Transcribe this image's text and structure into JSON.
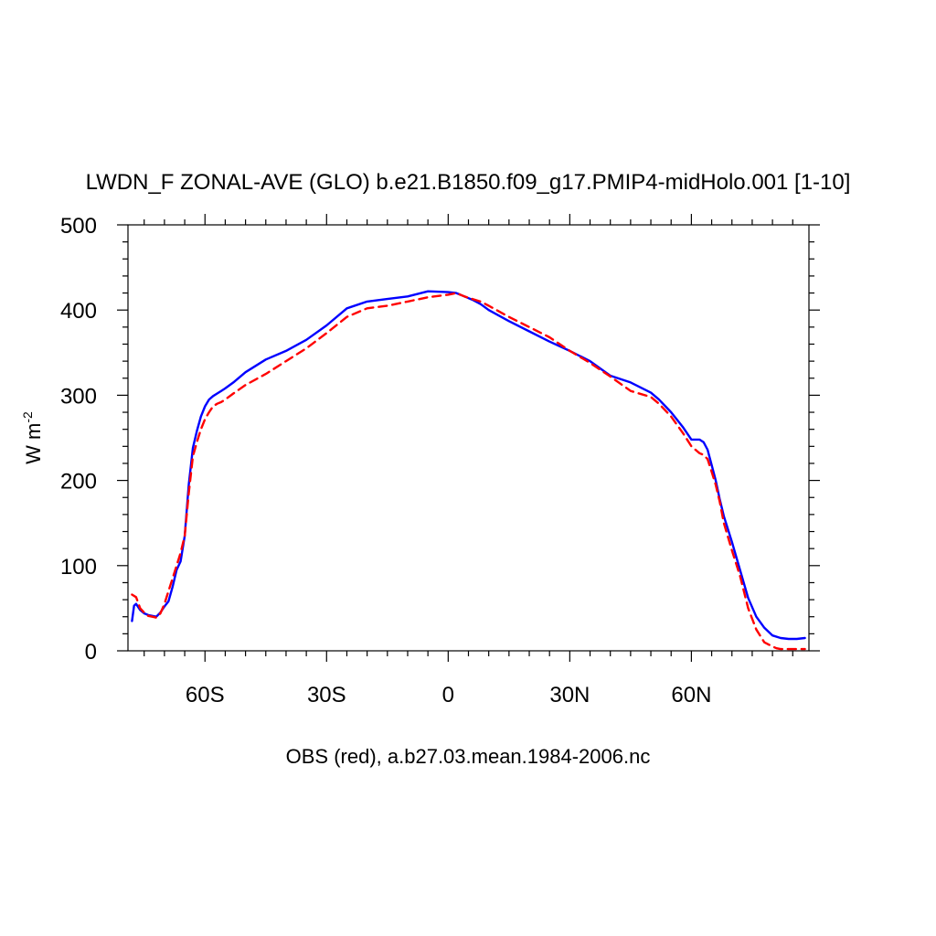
{
  "chart_data": {
    "type": "line",
    "title": "LWDN_F ZONAL-AVE (GLO) b.e21.B1850.f09_g17.PMIP4-midHolo.001 [1-10]",
    "xlabel": "OBS (red), a.b27.03.mean.1984-2006.nc",
    "ylabel": "W m",
    "ylabel_exponent": "-2",
    "xlim": [
      -79,
      89
    ],
    "ylim": [
      0,
      500
    ],
    "grid": false,
    "x_ticks": [
      {
        "value": -60,
        "label": "60S"
      },
      {
        "value": -30,
        "label": "30S"
      },
      {
        "value": 0,
        "label": "0"
      },
      {
        "value": 30,
        "label": "30N"
      },
      {
        "value": 60,
        "label": "60N"
      }
    ],
    "y_ticks": [
      {
        "value": 0,
        "label": "0"
      },
      {
        "value": 100,
        "label": "100"
      },
      {
        "value": 200,
        "label": "200"
      },
      {
        "value": 300,
        "label": "300"
      },
      {
        "value": 400,
        "label": "400"
      },
      {
        "value": 500,
        "label": "500"
      }
    ],
    "series": [
      {
        "color": "#0000ff",
        "dash": "solid",
        "x": [
          -78,
          -77.5,
          -77,
          -76,
          -75,
          -74,
          -73,
          -72,
          -71,
          -70,
          -69,
          -68,
          -67,
          -66,
          -65,
          -64,
          -63,
          -62,
          -61,
          -60,
          -59,
          -58,
          -57,
          -56,
          -55,
          -53,
          -50,
          -45,
          -40,
          -35,
          -30,
          -25,
          -20,
          -15,
          -10,
          -5,
          0,
          2,
          4,
          6,
          8,
          10,
          15,
          20,
          25,
          30,
          35,
          40,
          45,
          50,
          52,
          55,
          58,
          60,
          62,
          63,
          64,
          65,
          66,
          67,
          68,
          70,
          72,
          74,
          76,
          78,
          80,
          82,
          84,
          86,
          88
        ],
        "y": [
          35,
          53,
          55,
          48,
          44,
          42,
          41,
          40,
          45,
          52,
          58,
          75,
          95,
          105,
          135,
          195,
          238,
          258,
          275,
          287,
          295,
          299,
          302,
          305,
          308,
          315,
          327,
          342,
          352,
          365,
          382,
          402,
          410,
          413,
          416,
          422,
          421,
          420,
          416,
          412,
          407,
          400,
          387,
          375,
          363,
          352,
          340,
          323,
          315,
          303,
          295,
          280,
          262,
          248,
          248,
          245,
          236,
          218,
          200,
          178,
          158,
          128,
          95,
          62,
          40,
          27,
          18,
          15,
          14,
          14,
          15
        ]
      },
      {
        "color": "#ff0000",
        "dash": "dashed",
        "x": [
          -78,
          -77,
          -76,
          -75,
          -74,
          -73,
          -72,
          -71,
          -70,
          -69,
          -68,
          -67,
          -66,
          -65,
          -64,
          -63,
          -62,
          -61,
          -60,
          -59,
          -58,
          -57,
          -56,
          -55,
          -53,
          -50,
          -45,
          -40,
          -35,
          -30,
          -25,
          -20,
          -15,
          -10,
          -5,
          0,
          2,
          4,
          6,
          8,
          10,
          15,
          20,
          25,
          30,
          35,
          40,
          45,
          50,
          52,
          55,
          58,
          60,
          62,
          63,
          64,
          65,
          66,
          67,
          68,
          70,
          72,
          74,
          76,
          78,
          80,
          81,
          82,
          84,
          86,
          88
        ],
        "y": [
          66,
          63,
          50,
          45,
          41,
          40,
          39,
          44,
          55,
          70,
          85,
          100,
          115,
          135,
          185,
          228,
          245,
          260,
          272,
          280,
          287,
          290,
          292,
          295,
          302,
          312,
          325,
          340,
          355,
          373,
          392,
          402,
          405,
          410,
          415,
          418,
          420,
          416,
          413,
          410,
          405,
          392,
          380,
          368,
          352,
          338,
          322,
          305,
          298,
          290,
          275,
          255,
          240,
          232,
          230,
          225,
          210,
          195,
          175,
          150,
          118,
          88,
          50,
          25,
          10,
          5,
          3,
          2,
          2,
          2,
          2
        ]
      }
    ]
  }
}
